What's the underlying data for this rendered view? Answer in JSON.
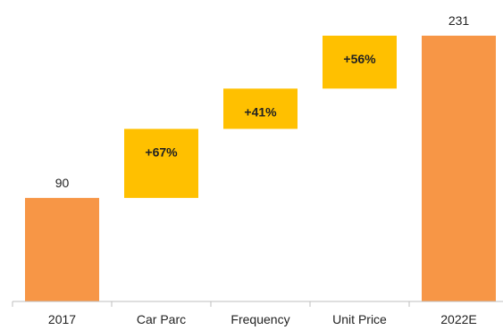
{
  "chart_data": {
    "type": "bar",
    "subtype": "waterfall",
    "categories": [
      "2017",
      "Car Parc",
      "Frequency",
      "Unit Price",
      "2022E"
    ],
    "bars": [
      {
        "category": "2017",
        "kind": "total",
        "start": 0,
        "end": 90,
        "label": "90"
      },
      {
        "category": "Car Parc",
        "kind": "delta",
        "start": 90,
        "end": 150,
        "label": "+67%"
      },
      {
        "category": "Frequency",
        "kind": "delta",
        "start": 150,
        "end": 185,
        "label": "+41%"
      },
      {
        "category": "Unit Price",
        "kind": "delta",
        "start": 185,
        "end": 231,
        "label": "+56%"
      },
      {
        "category": "2022E",
        "kind": "total",
        "start": 0,
        "end": 231,
        "label": "231"
      }
    ],
    "title": "",
    "xlabel": "",
    "ylabel": "",
    "ylim": [
      0,
      231
    ],
    "grid": false,
    "legend": "none",
    "colors": {
      "total": "#F79646",
      "delta": "#FFC000",
      "axis": "#BFBFBF",
      "text": "#222222"
    }
  }
}
